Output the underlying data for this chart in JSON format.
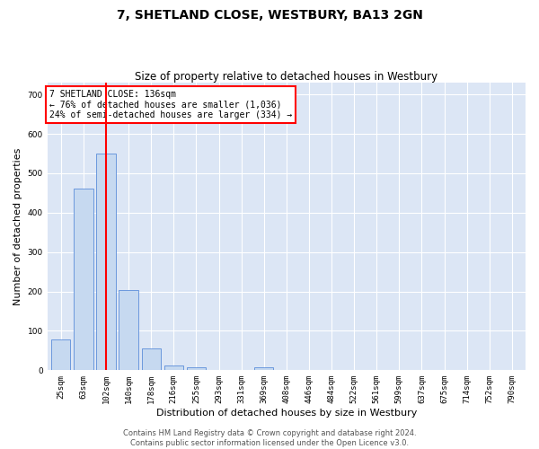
{
  "title": "7, SHETLAND CLOSE, WESTBURY, BA13 2GN",
  "subtitle": "Size of property relative to detached houses in Westbury",
  "xlabel": "Distribution of detached houses by size in Westbury",
  "ylabel": "Number of detached properties",
  "categories": [
    "25sqm",
    "63sqm",
    "102sqm",
    "140sqm",
    "178sqm",
    "216sqm",
    "255sqm",
    "293sqm",
    "331sqm",
    "369sqm",
    "408sqm",
    "446sqm",
    "484sqm",
    "522sqm",
    "561sqm",
    "599sqm",
    "637sqm",
    "675sqm",
    "714sqm",
    "752sqm",
    "790sqm"
  ],
  "values": [
    78,
    462,
    550,
    203,
    55,
    13,
    7,
    0,
    0,
    8,
    0,
    0,
    0,
    0,
    0,
    0,
    0,
    0,
    0,
    0,
    0
  ],
  "bar_color": "#c6d9f0",
  "bar_edge_color": "#5b8dd9",
  "annotation_box_text": "7 SHETLAND CLOSE: 136sqm\n← 76% of detached houses are smaller (1,036)\n24% of semi-detached houses are larger (334) →",
  "ylim": [
    0,
    730
  ],
  "yticks": [
    0,
    100,
    200,
    300,
    400,
    500,
    600,
    700
  ],
  "footer_line1": "Contains HM Land Registry data © Crown copyright and database right 2024.",
  "footer_line2": "Contains public sector information licensed under the Open Licence v3.0.",
  "bg_color": "#ffffff",
  "plot_bg_color": "#dce6f5",
  "grid_color": "#ffffff",
  "title_fontsize": 10,
  "subtitle_fontsize": 8.5,
  "tick_fontsize": 6.5,
  "ylabel_fontsize": 8,
  "xlabel_fontsize": 8,
  "annotation_fontsize": 7,
  "footer_fontsize": 6,
  "red_line_x": 2.0
}
